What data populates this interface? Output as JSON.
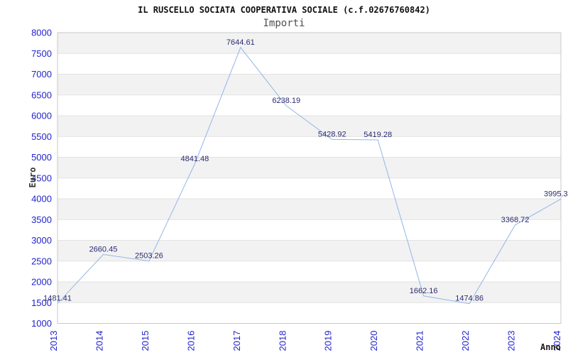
{
  "chart_data": {
    "type": "line",
    "title": "IL RUSCELLO SOCIATA COOPERATIVA SOCIALE (c.f.02676760842)",
    "subtitle": "Importi",
    "xlabel": "Anno",
    "ylabel": "Euro",
    "x": [
      "2013",
      "2014",
      "2015",
      "2016",
      "2017",
      "2018",
      "2019",
      "2020",
      "2021",
      "2022",
      "2023",
      "2024"
    ],
    "series": [
      {
        "name": "Importi",
        "values": [
          1481.41,
          2660.45,
          2503.26,
          4841.48,
          7644.61,
          6238.19,
          5428.92,
          5419.28,
          1662.16,
          1474.86,
          3368.72,
          3995.3
        ],
        "point_labels": [
          "1481.41",
          "2660.45",
          "2503.26",
          "4841.48",
          "7644.61",
          "6238.19",
          "5428.92",
          "5419.28",
          "1662.16",
          "1474.86",
          "3368.72",
          "3995.3"
        ]
      }
    ],
    "ylim": [
      1000,
      8000
    ],
    "ytick_step": 500,
    "grid": "horizontal-alternating-bands",
    "legend": "none",
    "colors": {
      "line": "#92b6e6",
      "tick_label": "#2323cf",
      "value_label": "#2b2b72",
      "band": "#f2f2f2",
      "band_alt": "#ffffff",
      "gridline": "#e2e2e2",
      "border": "#c9c9c9",
      "title": "#111111",
      "subtitle": "#4f4f4f",
      "axis_title": "#222222"
    }
  }
}
